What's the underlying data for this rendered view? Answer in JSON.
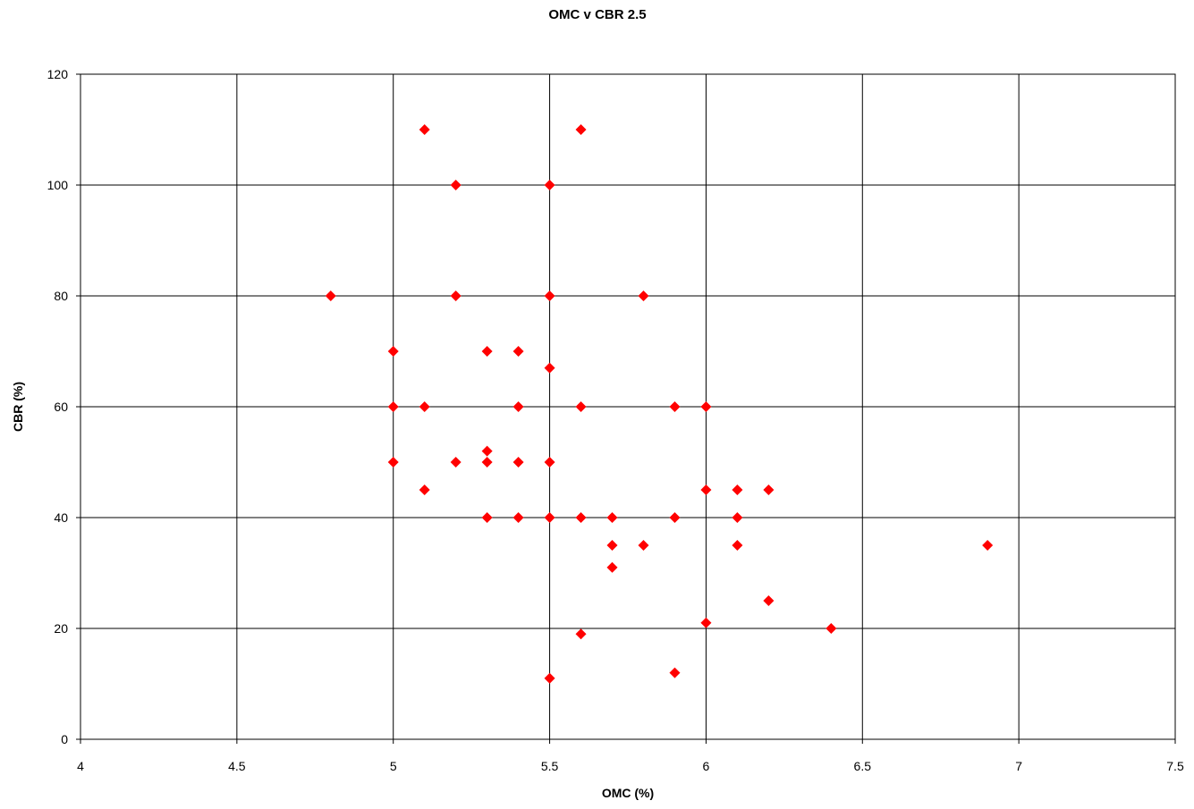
{
  "chart_data": {
    "type": "scatter",
    "title": "OMC v CBR 2.5",
    "xlabel": "OMC (%)",
    "ylabel": "CBR (%)",
    "xlim": [
      4,
      7.5
    ],
    "ylim": [
      0,
      120
    ],
    "x_ticks": [
      4,
      4.5,
      5,
      5.5,
      6,
      6.5,
      7,
      7.5
    ],
    "x_tick_labels": [
      "4",
      "4.5",
      "5",
      "5.5",
      "6",
      "6.5",
      "7",
      "7.5"
    ],
    "y_ticks": [
      0,
      20,
      40,
      60,
      80,
      100,
      120
    ],
    "y_tick_labels": [
      "0",
      "20",
      "40",
      "60",
      "80",
      "100",
      "120"
    ],
    "grid": true,
    "legend": "none",
    "marker": "diamond",
    "marker_color": "#ff0000",
    "series": [
      {
        "points": [
          [
            4.8,
            80
          ],
          [
            5.0,
            70
          ],
          [
            5.0,
            60
          ],
          [
            5.0,
            50
          ],
          [
            5.1,
            110
          ],
          [
            5.1,
            60
          ],
          [
            5.1,
            45
          ],
          [
            5.2,
            100
          ],
          [
            5.2,
            80
          ],
          [
            5.2,
            50
          ],
          [
            5.3,
            70
          ],
          [
            5.3,
            52
          ],
          [
            5.3,
            50
          ],
          [
            5.3,
            40
          ],
          [
            5.4,
            70
          ],
          [
            5.4,
            60
          ],
          [
            5.4,
            50
          ],
          [
            5.4,
            40
          ],
          [
            5.5,
            100
          ],
          [
            5.5,
            80
          ],
          [
            5.5,
            67
          ],
          [
            5.5,
            50
          ],
          [
            5.5,
            40
          ],
          [
            5.5,
            11
          ],
          [
            5.6,
            110
          ],
          [
            5.6,
            60
          ],
          [
            5.6,
            40
          ],
          [
            5.6,
            19
          ],
          [
            5.7,
            40
          ],
          [
            5.7,
            35
          ],
          [
            5.7,
            31
          ],
          [
            5.8,
            80
          ],
          [
            5.8,
            35
          ],
          [
            5.9,
            60
          ],
          [
            5.9,
            40
          ],
          [
            5.9,
            12
          ],
          [
            6.0,
            60
          ],
          [
            6.0,
            45
          ],
          [
            6.0,
            21
          ],
          [
            6.1,
            45
          ],
          [
            6.1,
            40
          ],
          [
            6.1,
            35
          ],
          [
            6.2,
            45
          ],
          [
            6.2,
            25
          ],
          [
            6.4,
            20
          ],
          [
            6.9,
            35
          ]
        ]
      }
    ]
  }
}
